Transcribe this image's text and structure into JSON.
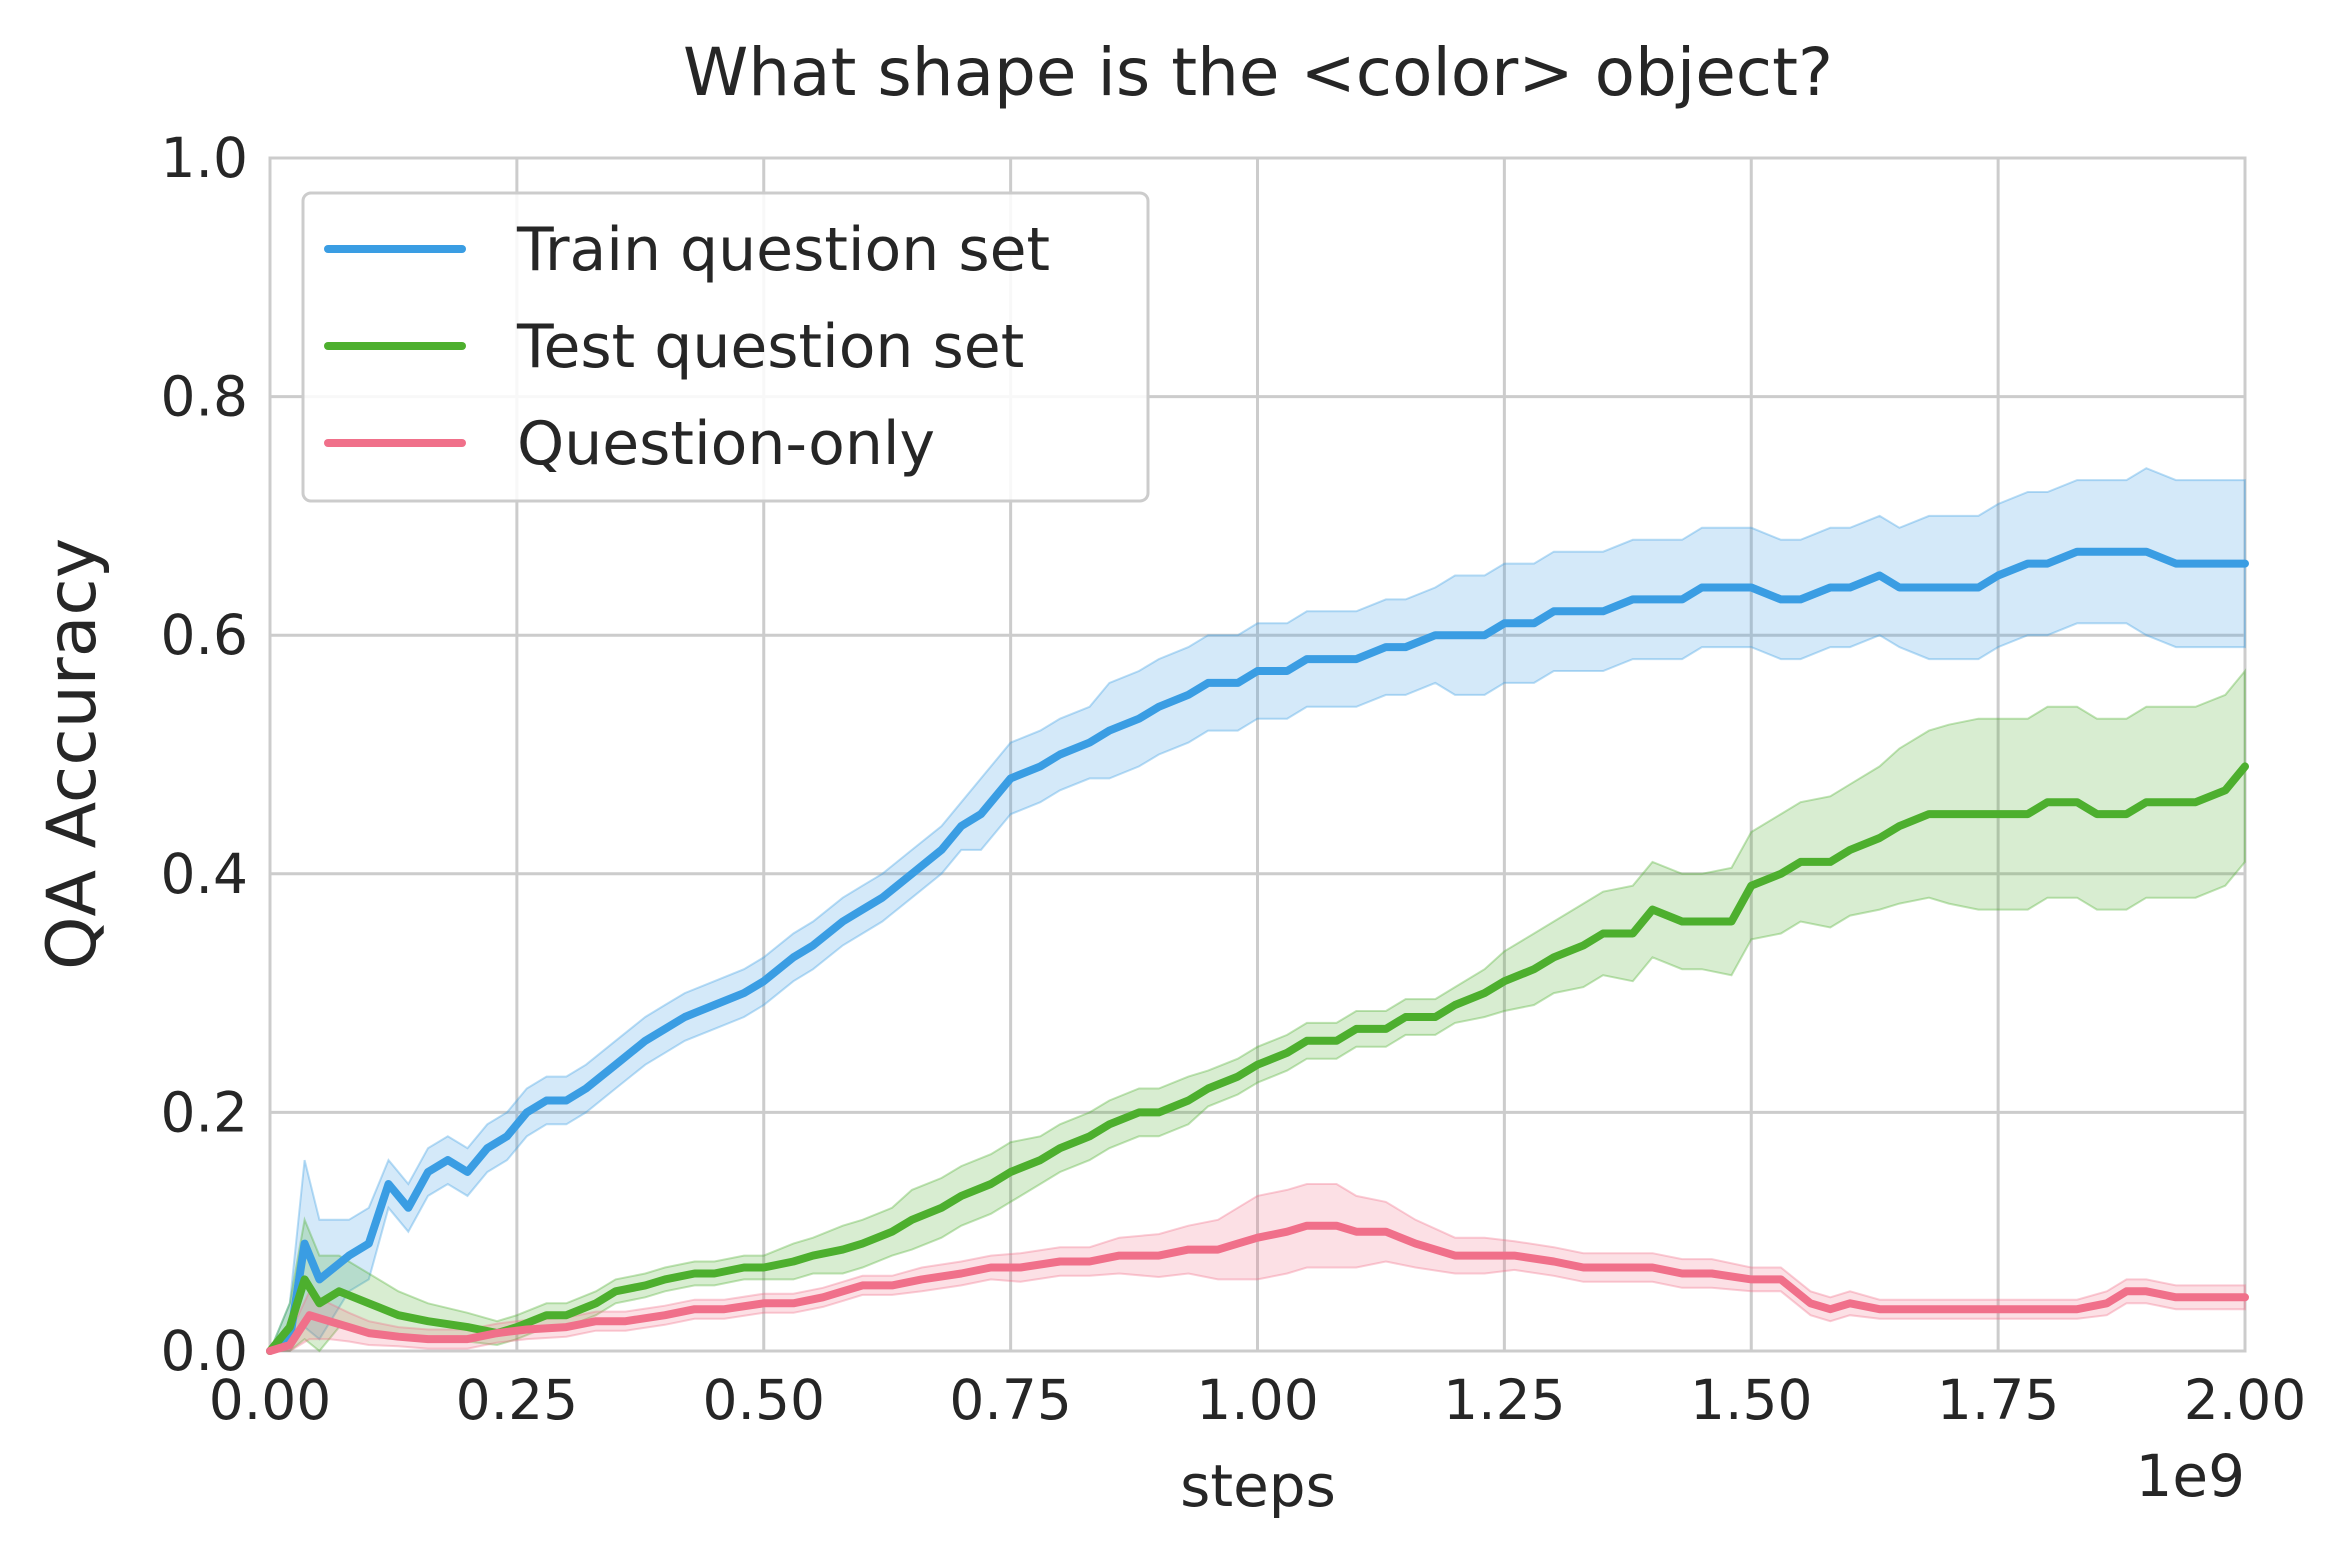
{
  "chart_data": {
    "type": "line",
    "title": "What shape is the <color> object?",
    "xlabel": "steps",
    "ylabel": "QA Accuracy",
    "x_offset_label": "1e9",
    "xlim": [
      0,
      2.0
    ],
    "ylim": [
      0,
      1.0
    ],
    "x_ticks": [
      "0.00",
      "0.25",
      "0.50",
      "0.75",
      "1.00",
      "1.25",
      "1.50",
      "1.75",
      "2.00"
    ],
    "y_ticks": [
      "0.0",
      "0.2",
      "0.4",
      "0.6",
      "0.8",
      "1.0"
    ],
    "grid": true,
    "legend_position": "top-left",
    "series": [
      {
        "name": "Train question set",
        "color": "#3a9de3",
        "x": [
          0.0,
          0.02,
          0.035,
          0.05,
          0.065,
          0.08,
          0.1,
          0.12,
          0.14,
          0.16,
          0.18,
          0.2,
          0.22,
          0.24,
          0.26,
          0.28,
          0.3,
          0.32,
          0.35,
          0.38,
          0.4,
          0.42,
          0.45,
          0.48,
          0.5,
          0.53,
          0.55,
          0.58,
          0.6,
          0.62,
          0.65,
          0.68,
          0.7,
          0.72,
          0.75,
          0.78,
          0.8,
          0.83,
          0.85,
          0.88,
          0.9,
          0.93,
          0.95,
          0.98,
          1.0,
          1.03,
          1.05,
          1.08,
          1.1,
          1.13,
          1.15,
          1.18,
          1.2,
          1.23,
          1.25,
          1.28,
          1.3,
          1.33,
          1.35,
          1.38,
          1.4,
          1.43,
          1.45,
          1.48,
          1.5,
          1.53,
          1.55,
          1.58,
          1.6,
          1.63,
          1.65,
          1.68,
          1.7,
          1.73,
          1.75,
          1.78,
          1.8,
          1.83,
          1.85,
          1.88,
          1.9,
          1.93,
          1.95,
          1.98,
          2.0
        ],
        "y": [
          0.0,
          0.01,
          0.09,
          0.06,
          0.07,
          0.08,
          0.09,
          0.14,
          0.12,
          0.15,
          0.16,
          0.15,
          0.17,
          0.18,
          0.2,
          0.21,
          0.21,
          0.22,
          0.24,
          0.26,
          0.27,
          0.28,
          0.29,
          0.3,
          0.31,
          0.33,
          0.34,
          0.36,
          0.37,
          0.38,
          0.4,
          0.42,
          0.44,
          0.45,
          0.48,
          0.49,
          0.5,
          0.51,
          0.52,
          0.53,
          0.54,
          0.55,
          0.56,
          0.56,
          0.57,
          0.57,
          0.58,
          0.58,
          0.58,
          0.59,
          0.59,
          0.6,
          0.6,
          0.6,
          0.61,
          0.61,
          0.62,
          0.62,
          0.62,
          0.63,
          0.63,
          0.63,
          0.64,
          0.64,
          0.64,
          0.63,
          0.63,
          0.64,
          0.64,
          0.65,
          0.64,
          0.64,
          0.64,
          0.64,
          0.65,
          0.66,
          0.66,
          0.67,
          0.67,
          0.67,
          0.67,
          0.66,
          0.66,
          0.66,
          0.66
        ],
        "band": [
          0.0,
          0.03,
          0.07,
          0.05,
          0.04,
          0.03,
          0.03,
          0.02,
          0.02,
          0.02,
          0.02,
          0.02,
          0.02,
          0.02,
          0.02,
          0.02,
          0.02,
          0.02,
          0.02,
          0.02,
          0.02,
          0.02,
          0.02,
          0.02,
          0.02,
          0.02,
          0.02,
          0.02,
          0.02,
          0.02,
          0.02,
          0.02,
          0.02,
          0.03,
          0.03,
          0.03,
          0.03,
          0.03,
          0.04,
          0.04,
          0.04,
          0.04,
          0.04,
          0.04,
          0.04,
          0.04,
          0.04,
          0.04,
          0.04,
          0.04,
          0.04,
          0.04,
          0.05,
          0.05,
          0.05,
          0.05,
          0.05,
          0.05,
          0.05,
          0.05,
          0.05,
          0.05,
          0.05,
          0.05,
          0.05,
          0.05,
          0.05,
          0.05,
          0.05,
          0.05,
          0.05,
          0.06,
          0.06,
          0.06,
          0.06,
          0.06,
          0.06,
          0.06,
          0.06,
          0.06,
          0.07,
          0.07,
          0.07,
          0.07,
          0.07
        ]
      },
      {
        "name": "Test question set",
        "color": "#4daf2e",
        "x": [
          0.0,
          0.02,
          0.035,
          0.05,
          0.07,
          0.1,
          0.13,
          0.16,
          0.2,
          0.23,
          0.25,
          0.28,
          0.3,
          0.33,
          0.35,
          0.38,
          0.4,
          0.43,
          0.45,
          0.48,
          0.5,
          0.53,
          0.55,
          0.58,
          0.6,
          0.63,
          0.65,
          0.68,
          0.7,
          0.73,
          0.75,
          0.78,
          0.8,
          0.83,
          0.85,
          0.88,
          0.9,
          0.93,
          0.95,
          0.98,
          1.0,
          1.03,
          1.05,
          1.08,
          1.1,
          1.13,
          1.15,
          1.18,
          1.2,
          1.23,
          1.25,
          1.28,
          1.3,
          1.33,
          1.35,
          1.38,
          1.4,
          1.43,
          1.45,
          1.48,
          1.5,
          1.53,
          1.55,
          1.58,
          1.6,
          1.63,
          1.65,
          1.68,
          1.7,
          1.73,
          1.75,
          1.78,
          1.8,
          1.83,
          1.85,
          1.88,
          1.9,
          1.93,
          1.95,
          1.98,
          2.0
        ],
        "y": [
          0.0,
          0.02,
          0.06,
          0.04,
          0.05,
          0.04,
          0.03,
          0.025,
          0.02,
          0.015,
          0.02,
          0.03,
          0.03,
          0.04,
          0.05,
          0.055,
          0.06,
          0.065,
          0.065,
          0.07,
          0.07,
          0.075,
          0.08,
          0.085,
          0.09,
          0.1,
          0.11,
          0.12,
          0.13,
          0.14,
          0.15,
          0.16,
          0.17,
          0.18,
          0.19,
          0.2,
          0.2,
          0.21,
          0.22,
          0.23,
          0.24,
          0.25,
          0.26,
          0.26,
          0.27,
          0.27,
          0.28,
          0.28,
          0.29,
          0.3,
          0.31,
          0.32,
          0.33,
          0.34,
          0.35,
          0.35,
          0.37,
          0.36,
          0.36,
          0.36,
          0.39,
          0.4,
          0.41,
          0.41,
          0.42,
          0.43,
          0.44,
          0.45,
          0.45,
          0.45,
          0.45,
          0.45,
          0.46,
          0.46,
          0.45,
          0.45,
          0.46,
          0.46,
          0.46,
          0.47,
          0.49
        ],
        "band": [
          0.0,
          0.02,
          0.05,
          0.04,
          0.03,
          0.025,
          0.02,
          0.015,
          0.012,
          0.01,
          0.01,
          0.01,
          0.01,
          0.01,
          0.01,
          0.01,
          0.01,
          0.01,
          0.01,
          0.01,
          0.01,
          0.015,
          0.015,
          0.02,
          0.02,
          0.02,
          0.025,
          0.025,
          0.025,
          0.025,
          0.025,
          0.02,
          0.02,
          0.02,
          0.02,
          0.02,
          0.02,
          0.02,
          0.015,
          0.015,
          0.015,
          0.015,
          0.015,
          0.015,
          0.015,
          0.015,
          0.015,
          0.015,
          0.015,
          0.02,
          0.025,
          0.03,
          0.03,
          0.035,
          0.035,
          0.04,
          0.04,
          0.04,
          0.04,
          0.045,
          0.045,
          0.05,
          0.05,
          0.055,
          0.055,
          0.06,
          0.065,
          0.07,
          0.075,
          0.08,
          0.08,
          0.08,
          0.08,
          0.08,
          0.08,
          0.08,
          0.08,
          0.08,
          0.08,
          0.08,
          0.08
        ]
      },
      {
        "name": "Question-only",
        "color": "#f0708a",
        "x": [
          0.0,
          0.02,
          0.04,
          0.06,
          0.08,
          0.1,
          0.13,
          0.16,
          0.2,
          0.23,
          0.26,
          0.3,
          0.33,
          0.36,
          0.4,
          0.43,
          0.46,
          0.5,
          0.53,
          0.56,
          0.58,
          0.6,
          0.63,
          0.66,
          0.7,
          0.73,
          0.76,
          0.8,
          0.83,
          0.86,
          0.9,
          0.93,
          0.96,
          0.98,
          1.0,
          1.03,
          1.05,
          1.08,
          1.1,
          1.13,
          1.16,
          1.2,
          1.23,
          1.26,
          1.3,
          1.33,
          1.36,
          1.4,
          1.43,
          1.46,
          1.5,
          1.53,
          1.56,
          1.58,
          1.6,
          1.63,
          1.66,
          1.7,
          1.73,
          1.76,
          1.8,
          1.83,
          1.86,
          1.88,
          1.9,
          1.93,
          1.96,
          2.0
        ],
        "y": [
          0.0,
          0.005,
          0.03,
          0.025,
          0.02,
          0.015,
          0.012,
          0.01,
          0.01,
          0.015,
          0.018,
          0.02,
          0.025,
          0.025,
          0.03,
          0.035,
          0.035,
          0.04,
          0.04,
          0.045,
          0.05,
          0.055,
          0.055,
          0.06,
          0.065,
          0.07,
          0.07,
          0.075,
          0.075,
          0.08,
          0.08,
          0.085,
          0.085,
          0.09,
          0.095,
          0.1,
          0.105,
          0.105,
          0.1,
          0.1,
          0.09,
          0.08,
          0.08,
          0.08,
          0.075,
          0.07,
          0.07,
          0.07,
          0.065,
          0.065,
          0.06,
          0.06,
          0.04,
          0.035,
          0.04,
          0.035,
          0.035,
          0.035,
          0.035,
          0.035,
          0.035,
          0.035,
          0.04,
          0.05,
          0.05,
          0.045,
          0.045,
          0.045
        ],
        "band": [
          0.0,
          0.01,
          0.02,
          0.015,
          0.012,
          0.01,
          0.008,
          0.008,
          0.008,
          0.008,
          0.008,
          0.008,
          0.008,
          0.008,
          0.008,
          0.008,
          0.008,
          0.008,
          0.008,
          0.008,
          0.008,
          0.008,
          0.008,
          0.01,
          0.01,
          0.01,
          0.012,
          0.012,
          0.012,
          0.015,
          0.018,
          0.02,
          0.025,
          0.03,
          0.035,
          0.035,
          0.035,
          0.035,
          0.03,
          0.025,
          0.02,
          0.015,
          0.015,
          0.012,
          0.012,
          0.012,
          0.012,
          0.012,
          0.012,
          0.012,
          0.01,
          0.01,
          0.01,
          0.01,
          0.01,
          0.008,
          0.008,
          0.008,
          0.008,
          0.008,
          0.008,
          0.008,
          0.01,
          0.01,
          0.01,
          0.01,
          0.01,
          0.01
        ]
      }
    ]
  }
}
